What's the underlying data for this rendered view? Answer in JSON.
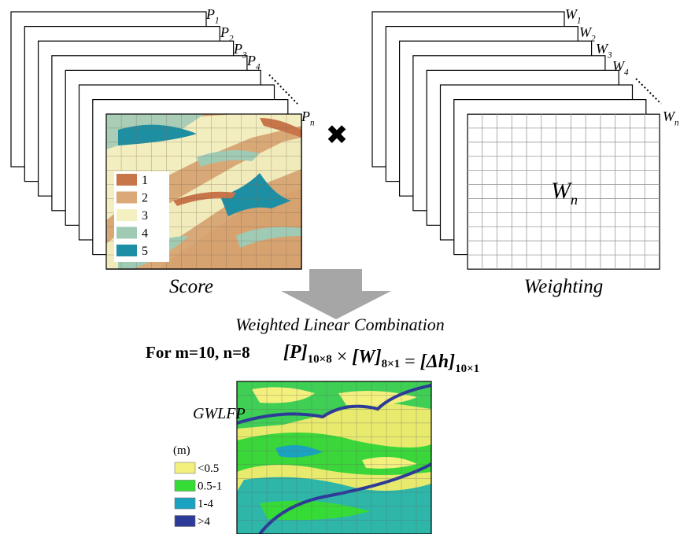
{
  "score_stack": {
    "labels": [
      {
        "letter": "P",
        "index": "1"
      },
      {
        "letter": "P",
        "index": "2"
      },
      {
        "letter": "P",
        "index": "3"
      },
      {
        "letter": "P",
        "index": "4"
      },
      {
        "letter": "P",
        "index": "n"
      }
    ],
    "caption": "Score",
    "legend": [
      {
        "label": "1",
        "color": "#c8754a"
      },
      {
        "label": "2",
        "color": "#dba878"
      },
      {
        "label": "3",
        "color": "#f5f0c2"
      },
      {
        "label": "4",
        "color": "#9fcbb5"
      },
      {
        "label": "5",
        "color": "#1c8fa5"
      }
    ]
  },
  "weight_stack": {
    "labels": [
      {
        "letter": "W",
        "index": "1"
      },
      {
        "letter": "W",
        "index": "2"
      },
      {
        "letter": "W",
        "index": "3"
      },
      {
        "letter": "W",
        "index": "4"
      },
      {
        "letter": "W",
        "index": "n"
      }
    ],
    "center_label": {
      "letter": "W",
      "index": "n"
    },
    "caption": "Weighting"
  },
  "operator": "✖",
  "combination": {
    "title": "Weighted Linear Combination",
    "condition": "For m=10, n=8",
    "equation": [
      {
        "main": "[P]",
        "sub": "10×8"
      },
      {
        "main": " × "
      },
      {
        "main": "[W]",
        "sub": "8×1"
      },
      {
        "main": " = "
      },
      {
        "main": "[Δh]",
        "sub": "10×1"
      }
    ]
  },
  "result": {
    "title": "GWLFP",
    "unit": "(m)",
    "legend": [
      {
        "label": "<0.5",
        "color": "#f4f07e"
      },
      {
        "label": "0.5-1",
        "color": "#36dc36"
      },
      {
        "label": "1-4",
        "color": "#1aa3c1"
      },
      {
        "label": ">4",
        "color": "#2d3a98"
      }
    ]
  }
}
